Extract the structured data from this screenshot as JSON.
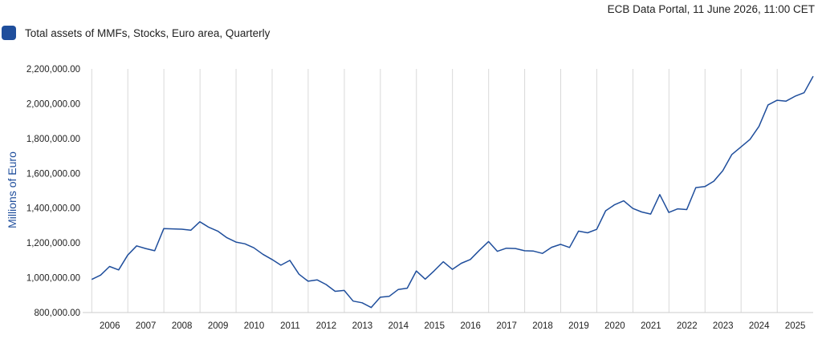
{
  "header": {
    "source": "ECB Data Portal, 11 June 2026, 11:00 CET"
  },
  "chart_data": {
    "type": "line",
    "title": "",
    "xlabel": "",
    "ylabel": "Millions of Euro",
    "ylim": [
      800000,
      2200000
    ],
    "xlim": [
      "2005-10-01",
      "2025-12-31"
    ],
    "grid": {
      "x": true,
      "y": false
    },
    "legend_position": "top-left",
    "y_ticks": [
      800000,
      1000000,
      1200000,
      1400000,
      1600000,
      1800000,
      2000000,
      2200000
    ],
    "y_tick_labels": [
      "800,000.00",
      "1,000,000.00",
      "1,200,000.00",
      "1,400,000.00",
      "1,600,000.00",
      "1,800,000.00",
      "2,000,000.00",
      "2,200,000.00"
    ],
    "x_ticks": [
      "2006-01-01",
      "2007-01-01",
      "2008-01-01",
      "2009-01-01",
      "2010-01-01",
      "2011-01-01",
      "2012-01-01",
      "2013-01-01",
      "2014-01-01",
      "2015-01-01",
      "2016-01-01",
      "2017-01-01",
      "2018-01-01",
      "2019-01-01",
      "2020-01-01",
      "2021-01-01",
      "2022-01-01",
      "2023-01-01",
      "2024-01-01",
      "2025-01-01"
    ],
    "x_tick_labels": [
      "2006",
      "2007",
      "2008",
      "2009",
      "2010",
      "2011",
      "2012",
      "2013",
      "2014",
      "2015",
      "2016",
      "2017",
      "2018",
      "2019",
      "2020",
      "2021",
      "2022",
      "2023",
      "2024",
      "2025"
    ],
    "series": [
      {
        "name": "Total assets of MMFs, Stocks, Euro area, Quarterly",
        "color": "#1f4e9c",
        "x": [
          "2005-12-31",
          "2006-03-31",
          "2006-06-30",
          "2006-09-30",
          "2006-12-31",
          "2007-03-31",
          "2007-06-30",
          "2007-09-30",
          "2007-12-31",
          "2008-03-31",
          "2008-06-30",
          "2008-09-30",
          "2008-12-31",
          "2009-03-31",
          "2009-06-30",
          "2009-09-30",
          "2009-12-31",
          "2010-03-31",
          "2010-06-30",
          "2010-09-30",
          "2010-12-31",
          "2011-03-31",
          "2011-06-30",
          "2011-09-30",
          "2011-12-31",
          "2012-03-31",
          "2012-06-30",
          "2012-09-30",
          "2012-12-31",
          "2013-03-31",
          "2013-06-30",
          "2013-09-30",
          "2013-12-31",
          "2014-03-31",
          "2014-06-30",
          "2014-09-30",
          "2014-12-31",
          "2015-03-31",
          "2015-06-30",
          "2015-09-30",
          "2015-12-31",
          "2016-03-31",
          "2016-06-30",
          "2016-09-30",
          "2016-12-31",
          "2017-03-31",
          "2017-06-30",
          "2017-09-30",
          "2017-12-31",
          "2018-03-31",
          "2018-06-30",
          "2018-09-30",
          "2018-12-31",
          "2019-03-31",
          "2019-06-30",
          "2019-09-30",
          "2019-12-31",
          "2020-03-31",
          "2020-06-30",
          "2020-09-30",
          "2020-12-31",
          "2021-03-31",
          "2021-06-30",
          "2021-09-30",
          "2021-12-31",
          "2022-03-31",
          "2022-06-30",
          "2022-09-30",
          "2022-12-31",
          "2023-03-31",
          "2023-06-30",
          "2023-09-30",
          "2023-12-31",
          "2024-03-31",
          "2024-06-30",
          "2024-09-30",
          "2024-12-31",
          "2025-03-31",
          "2025-06-30",
          "2025-09-30",
          "2025-12-31"
        ],
        "values": [
          990000,
          1015000,
          1065000,
          1045000,
          1130000,
          1183000,
          1168000,
          1155000,
          1282000,
          1281000,
          1279000,
          1273000,
          1322000,
          1290000,
          1268000,
          1230000,
          1205000,
          1195000,
          1172000,
          1135000,
          1105000,
          1072000,
          1100000,
          1020000,
          980000,
          988000,
          961000,
          922000,
          927000,
          866000,
          856000,
          829000,
          888000,
          893000,
          932000,
          940000,
          1039000,
          992000,
          1040000,
          1092000,
          1048000,
          1083000,
          1105000,
          1158000,
          1208000,
          1152000,
          1170000,
          1168000,
          1155000,
          1153000,
          1140000,
          1175000,
          1192000,
          1174000,
          1268000,
          1258000,
          1278000,
          1385000,
          1420000,
          1442000,
          1398000,
          1378000,
          1366000,
          1478000,
          1375000,
          1396000,
          1392000,
          1518000,
          1524000,
          1555000,
          1615000,
          1708000,
          1752000,
          1795000,
          1870000,
          1993000,
          2020000,
          2015000,
          2043000,
          2063000,
          2158000
        ]
      }
    ]
  }
}
